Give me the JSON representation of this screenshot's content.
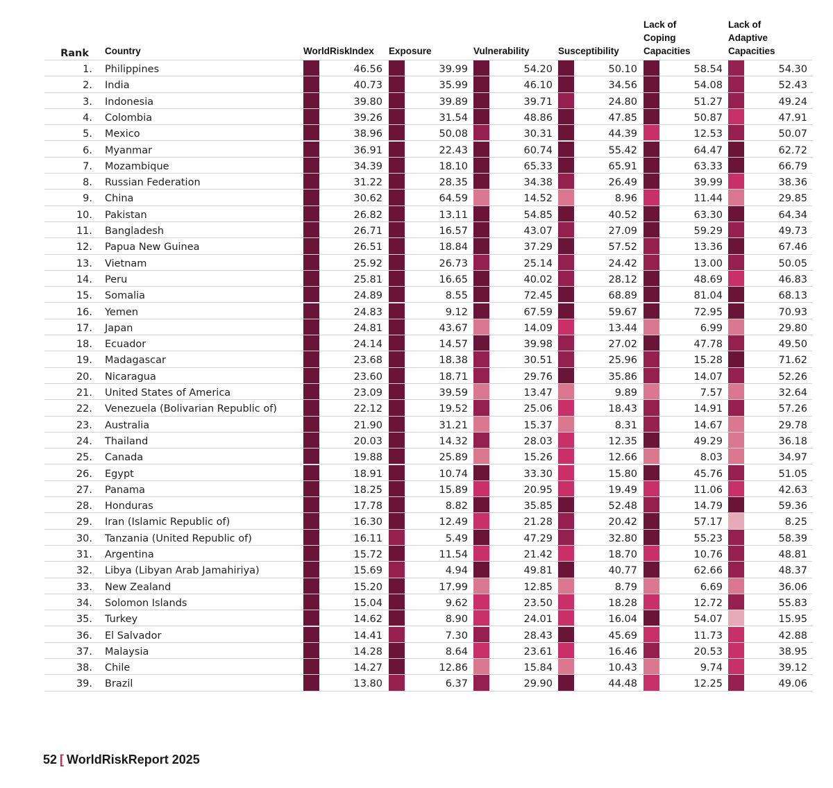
{
  "headers": {
    "rank": "Rank",
    "country": "Country",
    "indicators": [
      {
        "lines": [
          "WorldRiskIndex"
        ]
      },
      {
        "lines": [
          "Exposure"
        ]
      },
      {
        "lines": [
          "Vulnerability"
        ]
      },
      {
        "lines": [
          "Susceptibility"
        ]
      },
      {
        "lines": [
          "Lack of",
          "Coping",
          "Capacities"
        ]
      },
      {
        "lines": [
          "Lack of",
          "Adaptive",
          "Capacities"
        ]
      }
    ]
  },
  "class_colors": {
    "very_high": "#6a1438",
    "high": "#95204f",
    "medium": "#c9306a",
    "low": "#d9788f",
    "very_low": "#e6aab8"
  },
  "rows": [
    {
      "rank": "1.",
      "country": "Philippines",
      "values": [
        "46.56",
        "39.99",
        "54.20",
        "50.10",
        "58.54",
        "54.30"
      ],
      "classes": [
        "very_high",
        "very_high",
        "very_high",
        "very_high",
        "very_high",
        "high"
      ]
    },
    {
      "rank": "2.",
      "country": "India",
      "values": [
        "40.73",
        "35.99",
        "46.10",
        "34.56",
        "54.08",
        "52.43"
      ],
      "classes": [
        "very_high",
        "very_high",
        "very_high",
        "very_high",
        "very_high",
        "high"
      ]
    },
    {
      "rank": "3.",
      "country": "Indonesia",
      "values": [
        "39.80",
        "39.89",
        "39.71",
        "24.80",
        "51.27",
        "49.24"
      ],
      "classes": [
        "very_high",
        "very_high",
        "very_high",
        "high",
        "very_high",
        "high"
      ]
    },
    {
      "rank": "4.",
      "country": "Colombia",
      "values": [
        "39.26",
        "31.54",
        "48.86",
        "47.85",
        "50.87",
        "47.91"
      ],
      "classes": [
        "very_high",
        "very_high",
        "very_high",
        "very_high",
        "very_high",
        "medium"
      ]
    },
    {
      "rank": "5.",
      "country": "Mexico",
      "values": [
        "38.96",
        "50.08",
        "30.31",
        "44.39",
        "12.53",
        "50.07"
      ],
      "classes": [
        "very_high",
        "very_high",
        "high",
        "very_high",
        "medium",
        "high"
      ]
    },
    {
      "rank": "6.",
      "country": "Myanmar",
      "values": [
        "36.91",
        "22.43",
        "60.74",
        "55.42",
        "64.47",
        "62.72"
      ],
      "classes": [
        "very_high",
        "very_high",
        "very_high",
        "very_high",
        "very_high",
        "very_high"
      ]
    },
    {
      "rank": "7.",
      "country": "Mozambique",
      "values": [
        "34.39",
        "18.10",
        "65.33",
        "65.91",
        "63.33",
        "66.79"
      ],
      "classes": [
        "very_high",
        "very_high",
        "very_high",
        "very_high",
        "very_high",
        "very_high"
      ]
    },
    {
      "rank": "8.",
      "country": "Russian Federation",
      "values": [
        "31.22",
        "28.35",
        "34.38",
        "26.49",
        "39.99",
        "38.36"
      ],
      "classes": [
        "very_high",
        "very_high",
        "very_high",
        "high",
        "very_high",
        "medium"
      ]
    },
    {
      "rank": "9.",
      "country": "China",
      "values": [
        "30.62",
        "64.59",
        "14.52",
        "8.96",
        "11.44",
        "29.85"
      ],
      "classes": [
        "very_high",
        "very_high",
        "low",
        "low",
        "medium",
        "low"
      ]
    },
    {
      "rank": "10.",
      "country": "Pakistan",
      "values": [
        "26.82",
        "13.11",
        "54.85",
        "40.52",
        "63.30",
        "64.34"
      ],
      "classes": [
        "very_high",
        "very_high",
        "very_high",
        "very_high",
        "very_high",
        "very_high"
      ]
    },
    {
      "rank": "11.",
      "country": "Bangladesh",
      "values": [
        "26.71",
        "16.57",
        "43.07",
        "27.09",
        "59.29",
        "49.73"
      ],
      "classes": [
        "very_high",
        "very_high",
        "very_high",
        "high",
        "very_high",
        "high"
      ]
    },
    {
      "rank": "12.",
      "country": "Papua New Guinea",
      "values": [
        "26.51",
        "18.84",
        "37.29",
        "57.52",
        "13.36",
        "67.46"
      ],
      "classes": [
        "very_high",
        "very_high",
        "very_high",
        "very_high",
        "high",
        "very_high"
      ]
    },
    {
      "rank": "13.",
      "country": "Vietnam",
      "values": [
        "25.92",
        "26.73",
        "25.14",
        "24.42",
        "13.00",
        "50.05"
      ],
      "classes": [
        "very_high",
        "very_high",
        "high",
        "high",
        "high",
        "high"
      ]
    },
    {
      "rank": "14.",
      "country": "Peru",
      "values": [
        "25.81",
        "16.65",
        "40.02",
        "28.12",
        "48.69",
        "46.83"
      ],
      "classes": [
        "very_high",
        "very_high",
        "very_high",
        "high",
        "very_high",
        "medium"
      ]
    },
    {
      "rank": "15.",
      "country": "Somalia",
      "values": [
        "24.89",
        "8.55",
        "72.45",
        "68.89",
        "81.04",
        "68.13"
      ],
      "classes": [
        "very_high",
        "very_high",
        "very_high",
        "very_high",
        "very_high",
        "very_high"
      ]
    },
    {
      "rank": "16.",
      "country": "Yemen",
      "values": [
        "24.83",
        "9.12",
        "67.59",
        "59.67",
        "72.95",
        "70.93"
      ],
      "classes": [
        "very_high",
        "very_high",
        "very_high",
        "very_high",
        "very_high",
        "very_high"
      ]
    },
    {
      "rank": "17.",
      "country": "Japan",
      "values": [
        "24.81",
        "43.67",
        "14.09",
        "13.44",
        "6.99",
        "29.80"
      ],
      "classes": [
        "very_high",
        "very_high",
        "low",
        "medium",
        "low",
        "low"
      ]
    },
    {
      "rank": "18.",
      "country": "Ecuador",
      "values": [
        "24.14",
        "14.57",
        "39.98",
        "27.02",
        "47.78",
        "49.50"
      ],
      "classes": [
        "very_high",
        "very_high",
        "very_high",
        "high",
        "very_high",
        "high"
      ]
    },
    {
      "rank": "19.",
      "country": "Madagascar",
      "values": [
        "23.68",
        "18.38",
        "30.51",
        "25.96",
        "15.28",
        "71.62"
      ],
      "classes": [
        "very_high",
        "very_high",
        "high",
        "high",
        "high",
        "very_high"
      ]
    },
    {
      "rank": "20.",
      "country": "Nicaragua",
      "values": [
        "23.60",
        "18.71",
        "29.76",
        "35.86",
        "14.07",
        "52.26"
      ],
      "classes": [
        "very_high",
        "very_high",
        "high",
        "very_high",
        "high",
        "high"
      ]
    },
    {
      "rank": "21.",
      "country": "United States of America",
      "values": [
        "23.09",
        "39.59",
        "13.47",
        "9.89",
        "7.57",
        "32.64"
      ],
      "classes": [
        "very_high",
        "very_high",
        "low",
        "low",
        "low",
        "low"
      ]
    },
    {
      "rank": "22.",
      "country": "Venezuela (Bolivarian Republic of)",
      "values": [
        "22.12",
        "19.52",
        "25.06",
        "18.43",
        "14.91",
        "57.26"
      ],
      "classes": [
        "very_high",
        "very_high",
        "high",
        "medium",
        "high",
        "high"
      ]
    },
    {
      "rank": "23.",
      "country": "Australia",
      "values": [
        "21.90",
        "31.21",
        "15.37",
        "8.31",
        "14.67",
        "29.78"
      ],
      "classes": [
        "very_high",
        "very_high",
        "low",
        "low",
        "high",
        "low"
      ]
    },
    {
      "rank": "24.",
      "country": "Thailand",
      "values": [
        "20.03",
        "14.32",
        "28.03",
        "12.35",
        "49.29",
        "36.18"
      ],
      "classes": [
        "very_high",
        "very_high",
        "high",
        "medium",
        "very_high",
        "low"
      ]
    },
    {
      "rank": "25.",
      "country": "Canada",
      "values": [
        "19.88",
        "25.89",
        "15.26",
        "12.66",
        "8.03",
        "34.97"
      ],
      "classes": [
        "very_high",
        "very_high",
        "low",
        "medium",
        "low",
        "low"
      ]
    },
    {
      "rank": "26.",
      "country": "Egypt",
      "values": [
        "18.91",
        "10.74",
        "33.30",
        "15.80",
        "45.76",
        "51.05"
      ],
      "classes": [
        "very_high",
        "very_high",
        "very_high",
        "medium",
        "very_high",
        "high"
      ]
    },
    {
      "rank": "27.",
      "country": "Panama",
      "values": [
        "18.25",
        "15.89",
        "20.95",
        "19.49",
        "11.06",
        "42.63"
      ],
      "classes": [
        "very_high",
        "very_high",
        "medium",
        "medium",
        "medium",
        "medium"
      ]
    },
    {
      "rank": "28.",
      "country": "Honduras",
      "values": [
        "17.78",
        "8.82",
        "35.85",
        "52.48",
        "14.79",
        "59.36"
      ],
      "classes": [
        "very_high",
        "very_high",
        "very_high",
        "very_high",
        "high",
        "very_high"
      ]
    },
    {
      "rank": "29.",
      "country": "Iran (Islamic Republic of)",
      "values": [
        "16.30",
        "12.49",
        "21.28",
        "20.42",
        "57.17",
        "8.25"
      ],
      "classes": [
        "very_high",
        "very_high",
        "medium",
        "high",
        "very_high",
        "very_low"
      ]
    },
    {
      "rank": "30.",
      "country": "Tanzania (United Republic of)",
      "values": [
        "16.11",
        "5.49",
        "47.29",
        "32.80",
        "55.23",
        "58.39"
      ],
      "classes": [
        "very_high",
        "high",
        "very_high",
        "high",
        "very_high",
        "high"
      ]
    },
    {
      "rank": "31.",
      "country": "Argentina",
      "values": [
        "15.72",
        "11.54",
        "21.42",
        "18.70",
        "10.76",
        "48.81"
      ],
      "classes": [
        "very_high",
        "very_high",
        "medium",
        "medium",
        "medium",
        "high"
      ]
    },
    {
      "rank": "32.",
      "country": "Libya (Libyan Arab Jamahiriya)",
      "values": [
        "15.69",
        "4.94",
        "49.81",
        "40.77",
        "62.66",
        "48.37"
      ],
      "classes": [
        "very_high",
        "high",
        "very_high",
        "very_high",
        "very_high",
        "high"
      ]
    },
    {
      "rank": "33.",
      "country": "New Zealand",
      "values": [
        "15.20",
        "17.99",
        "12.85",
        "8.79",
        "6.69",
        "36.06"
      ],
      "classes": [
        "very_high",
        "very_high",
        "low",
        "low",
        "low",
        "low"
      ]
    },
    {
      "rank": "34.",
      "country": "Solomon Islands",
      "values": [
        "15.04",
        "9.62",
        "23.50",
        "18.28",
        "12.72",
        "55.83"
      ],
      "classes": [
        "very_high",
        "very_high",
        "medium",
        "medium",
        "medium",
        "high"
      ]
    },
    {
      "rank": "35.",
      "country": "Turkey",
      "values": [
        "14.62",
        "8.90",
        "24.01",
        "16.04",
        "54.07",
        "15.95"
      ],
      "classes": [
        "very_high",
        "very_high",
        "medium",
        "medium",
        "very_high",
        "very_low"
      ]
    },
    {
      "rank": "36.",
      "country": "El Salvador",
      "values": [
        "14.41",
        "7.30",
        "28.43",
        "45.69",
        "11.73",
        "42.88"
      ],
      "classes": [
        "very_high",
        "high",
        "high",
        "very_high",
        "medium",
        "medium"
      ]
    },
    {
      "rank": "37.",
      "country": "Malaysia",
      "values": [
        "14.28",
        "8.64",
        "23.61",
        "16.46",
        "20.53",
        "38.95"
      ],
      "classes": [
        "very_high",
        "very_high",
        "medium",
        "medium",
        "high",
        "medium"
      ]
    },
    {
      "rank": "38.",
      "country": "Chile",
      "values": [
        "14.27",
        "12.86",
        "15.84",
        "10.43",
        "9.74",
        "39.12"
      ],
      "classes": [
        "very_high",
        "very_high",
        "low",
        "low",
        "low",
        "medium"
      ]
    },
    {
      "rank": "39.",
      "country": "Brazil",
      "values": [
        "13.80",
        "6.37",
        "29.90",
        "44.48",
        "12.25",
        "49.06"
      ],
      "classes": [
        "very_high",
        "high",
        "high",
        "very_high",
        "medium",
        "high"
      ]
    }
  ],
  "footer": {
    "page_number": "52",
    "bracket": "[",
    "title": "WorldRiskReport 2025"
  }
}
